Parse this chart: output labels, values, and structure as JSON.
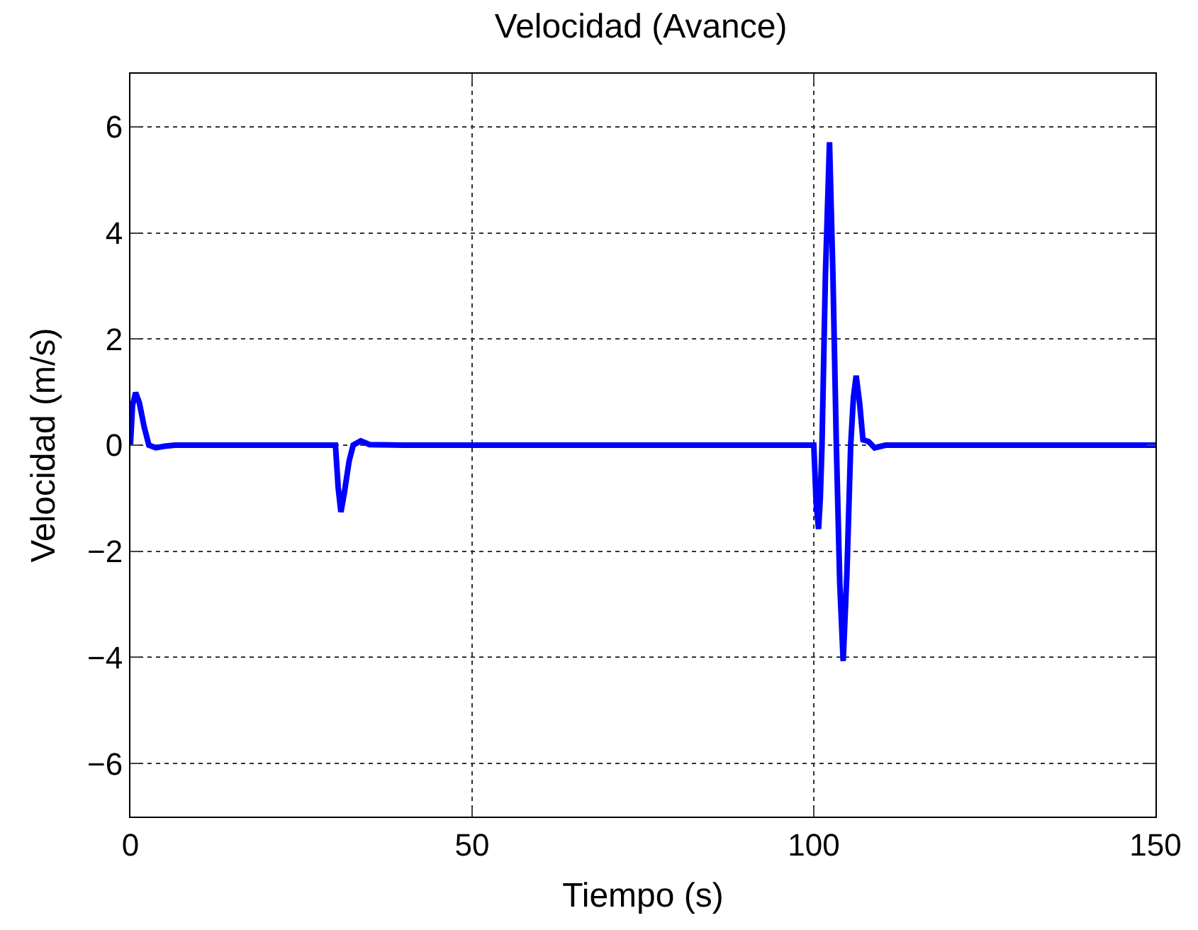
{
  "chart_data": {
    "type": "line",
    "title": "Velocidad (Avance)",
    "xlabel": "Tiempo (s)",
    "ylabel": "Velocidad (m/s)",
    "xlim": [
      0,
      150
    ],
    "xticks": [
      0,
      50,
      100,
      150
    ],
    "ylim": [
      -7,
      7
    ],
    "yticks": [
      {
        "value": -6,
        "label": "−6"
      },
      {
        "value": -4,
        "label": "−4"
      },
      {
        "value": -2,
        "label": "−2"
      },
      0,
      2,
      4,
      6
    ],
    "grid": true,
    "line_style": "solid",
    "marker": "none",
    "series": [
      {
        "color": "#0000ff",
        "x": [
          0,
          0.3,
          0.76,
          1.3,
          2.0,
          2.7,
          3.7,
          5,
          6.5,
          10,
          20,
          30.0,
          30.4,
          30.8,
          31.3,
          32.0,
          32.6,
          33.7,
          35,
          40,
          60,
          80,
          100.0,
          100.35,
          100.7,
          100.95,
          101.2,
          101.7,
          102.3,
          102.8,
          103.3,
          103.8,
          104.3,
          104.85,
          105.4,
          105.8,
          106.2,
          106.7,
          107.2,
          108.0,
          108.9,
          110.5,
          130,
          150
        ],
        "values": [
          0,
          0.75,
          0.99,
          0.8,
          0.35,
          0.0,
          -0.05,
          -0.02,
          0,
          0,
          0,
          0,
          -0.8,
          -1.26,
          -0.9,
          -0.3,
          0.0,
          0.08,
          0.01,
          0,
          0,
          0,
          0,
          -1.1,
          -1.58,
          -1.0,
          0,
          3.2,
          5.71,
          3.2,
          0,
          -2.6,
          -4.07,
          -2.4,
          0,
          0.9,
          1.31,
          0.8,
          0.1,
          0.07,
          -0.05,
          0,
          0,
          0
        ]
      }
    ]
  }
}
